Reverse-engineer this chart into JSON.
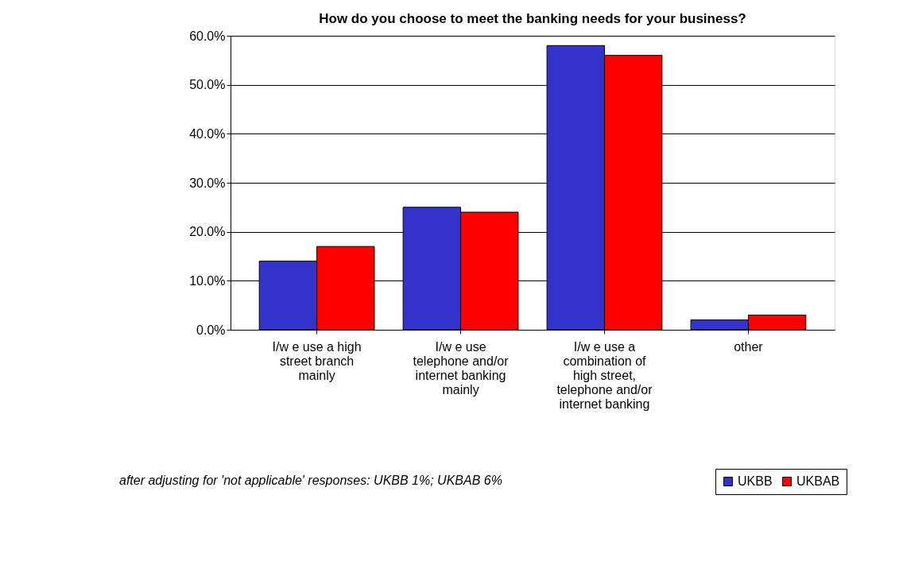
{
  "chart_data": {
    "type": "bar",
    "title": "How do you choose to meet the banking needs for your business?",
    "categories": [
      "I/w e use a high street branch mainly",
      "I/w e use telephone and/or internet banking mainly",
      "I/w e use a combination of high street, telephone and/or internet banking",
      "other"
    ],
    "series": [
      {
        "name": "UKBB",
        "color": "#3333cc",
        "values": [
          14,
          25,
          58,
          2
        ]
      },
      {
        "name": "UKBAB",
        "color": "#ff0000",
        "values": [
          17,
          24,
          56,
          3
        ]
      }
    ],
    "ylim": [
      0,
      60
    ],
    "yticks": [
      {
        "value": 0,
        "label": "0.0%"
      },
      {
        "value": 10,
        "label": "10.0%"
      },
      {
        "value": 20,
        "label": "20.0%"
      },
      {
        "value": 30,
        "label": "30.0%"
      },
      {
        "value": 40,
        "label": "40.0%"
      },
      {
        "value": 50,
        "label": "50.0%"
      },
      {
        "value": 60,
        "label": "60.0%"
      }
    ],
    "grid": "y",
    "legend": "bottom right",
    "annotations": [
      "after adjusting for 'not applicable' responses: UKBB 1%; UKBAB 6%"
    ]
  }
}
